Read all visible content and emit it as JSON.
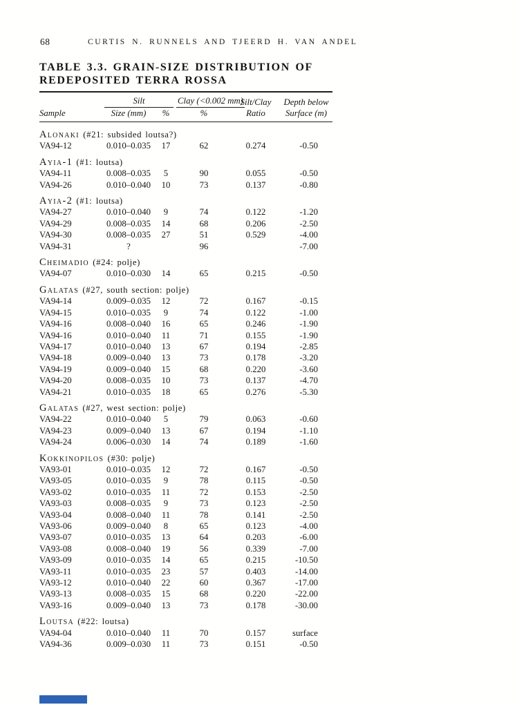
{
  "page": {
    "number": "68",
    "running_head": "CURTIS N. RUNNELS AND TJEERD H. VAN ANDEL"
  },
  "table": {
    "title_line1": "TABLE 3.3. GRAIN-SIZE DISTRIBUTION OF",
    "title_line2": "REDEPOSITED TERRA ROSSA",
    "columns": {
      "sample": "Sample",
      "silt_group": "Silt",
      "silt_size": "Size (mm)",
      "silt_pct": "%",
      "clay_group": "Clay (<0.002 mm)",
      "clay_pct": "%",
      "ratio_line1": "Silt/Clay",
      "ratio_line2": "Ratio",
      "depth_line1": "Depth below",
      "depth_line2": "Surface (m)"
    },
    "sections": [
      {
        "name": "Alonaki",
        "note": "(#21: subsided loutsa?)",
        "rows": [
          [
            "VA94-12",
            "0.010–0.035",
            "17",
            "62",
            "0.274",
            "-0.50"
          ]
        ]
      },
      {
        "name": "Ayia-1",
        "note": "(#1: loutsa)",
        "rows": [
          [
            "VA94-11",
            "0.008–0.035",
            "5",
            "90",
            "0.055",
            "-0.50"
          ],
          [
            "VA94-26",
            "0.010–0.040",
            "10",
            "73",
            "0.137",
            "-0.80"
          ]
        ]
      },
      {
        "name": "Ayia-2",
        "note": "(#1: loutsa)",
        "rows": [
          [
            "VA94-27",
            "0.010–0.040",
            "9",
            "74",
            "0.122",
            "-1.20"
          ],
          [
            "VA94-29",
            "0.008–0.035",
            "14",
            "68",
            "0.206",
            "-2.50"
          ],
          [
            "VA94-30",
            "0.008–0.035",
            "27",
            "51",
            "0.529",
            "-4.00"
          ],
          [
            "VA94-31",
            "?",
            "",
            "96",
            "",
            "-7.00"
          ]
        ]
      },
      {
        "name": "Cheimadio",
        "note": "(#24: polje)",
        "rows": [
          [
            "VA94-07",
            "0.010–0.030",
            "14",
            "65",
            "0.215",
            "-0.50"
          ]
        ]
      },
      {
        "name": "Galatas",
        "note": "(#27, south section: polje)",
        "rows": [
          [
            "VA94-14",
            "0.009–0.035",
            "12",
            "72",
            "0.167",
            "-0.15"
          ],
          [
            "VA94-15",
            "0.010–0.035",
            "9",
            "74",
            "0.122",
            "-1.00"
          ],
          [
            "VA94-16",
            "0.008–0.040",
            "16",
            "65",
            "0.246",
            "-1.90"
          ],
          [
            "VA94-16",
            "0.010–0.040",
            "11",
            "71",
            "0.155",
            "-1.90"
          ],
          [
            "VA94-17",
            "0.010–0.040",
            "13",
            "67",
            "0.194",
            "-2.85"
          ],
          [
            "VA94-18",
            "0.009–0.040",
            "13",
            "73",
            "0.178",
            "-3.20"
          ],
          [
            "VA94-19",
            "0.009–0.040",
            "15",
            "68",
            "0.220",
            "-3.60"
          ],
          [
            "VA94-20",
            "0.008–0.035",
            "10",
            "73",
            "0.137",
            "-4.70"
          ],
          [
            "VA94-21",
            "0.010–0.035",
            "18",
            "65",
            "0.276",
            "-5.30"
          ]
        ]
      },
      {
        "name": "Galatas",
        "note": "(#27, west section: polje)",
        "rows": [
          [
            "VA94-22",
            "0.010–0.040",
            "5",
            "79",
            "0.063",
            "-0.60"
          ],
          [
            "VA94-23",
            "0.009–0.040",
            "13",
            "67",
            "0.194",
            "-1.10"
          ],
          [
            "VA94-24",
            "0.006–0.030",
            "14",
            "74",
            "0.189",
            "-1.60"
          ]
        ]
      },
      {
        "name": "Kokkinopilos",
        "note": "(#30: polje)",
        "rows": [
          [
            "VA93-01",
            "0.010–0.035",
            "12",
            "72",
            "0.167",
            "-0.50"
          ],
          [
            "VA93-05",
            "0.010–0.035",
            "9",
            "78",
            "0.115",
            "-0.50"
          ],
          [
            "VA93-02",
            "0.010–0.035",
            "11",
            "72",
            "0.153",
            "-2.50"
          ],
          [
            "VA93-03",
            "0.008–0.035",
            "9",
            "73",
            "0.123",
            "-2.50"
          ],
          [
            "VA93-04",
            "0.008–0.040",
            "11",
            "78",
            "0.141",
            "-2.50"
          ],
          [
            "VA93-06",
            "0.009–0.040",
            "8",
            "65",
            "0.123",
            "-4.00"
          ],
          [
            "VA93-07",
            "0.010–0.035",
            "13",
            "64",
            "0.203",
            "-6.00"
          ],
          [
            "VA93-08",
            "0.008–0.040",
            "19",
            "56",
            "0.339",
            "-7.00"
          ],
          [
            "VA93-09",
            "0.010–0.035",
            "14",
            "65",
            "0.215",
            "-10.50"
          ],
          [
            "VA93-11",
            "0.010–0.035",
            "23",
            "57",
            "0.403",
            "-14.00"
          ],
          [
            "VA93-12",
            "0.010–0.040",
            "22",
            "60",
            "0.367",
            "-17.00"
          ],
          [
            "VA93-13",
            "0.008–0.035",
            "15",
            "68",
            "0.220",
            "-22.00"
          ],
          [
            "VA93-16",
            "0.009–0.040",
            "13",
            "73",
            "0.178",
            "-30.00"
          ]
        ]
      },
      {
        "name": "Loutsa",
        "note": "(#22: loutsa)",
        "rows": [
          [
            "VA94-04",
            "0.010–0.040",
            "11",
            "70",
            "0.157",
            "surface"
          ],
          [
            "VA94-36",
            "0.009–0.030",
            "11",
            "73",
            "0.151",
            "-0.50"
          ]
        ]
      }
    ]
  }
}
